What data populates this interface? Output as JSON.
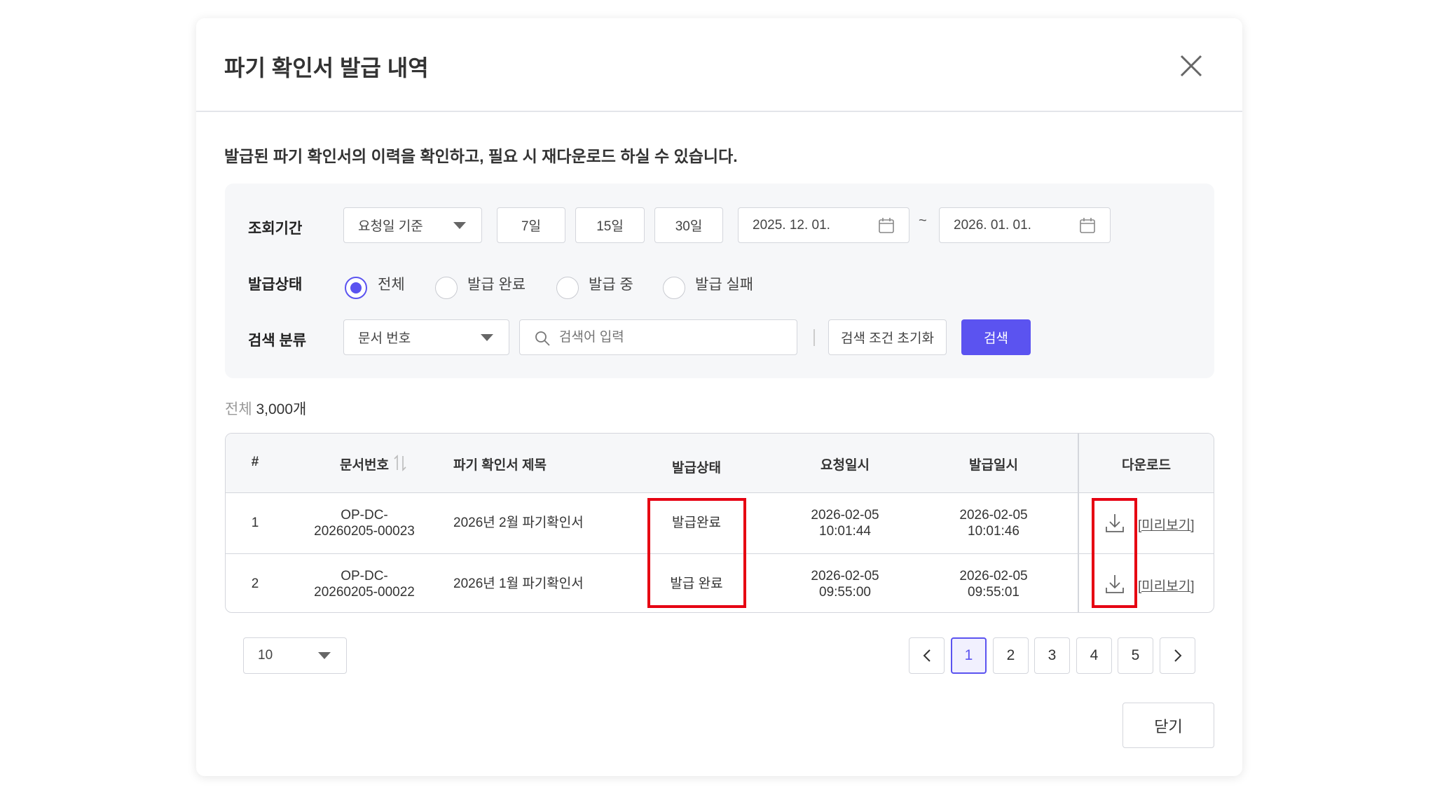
{
  "dialog": {
    "title": "파기 확인서 발급 내역",
    "description": "발급된 파기 확인서의 이력을 확인하고, 필요 시 재다운로드 하실 수 있습니다.",
    "close_icon": "close-icon"
  },
  "filters": {
    "period_label": "조회기간",
    "period_basis": "요청일 기준",
    "quick_ranges": [
      "7일",
      "15일",
      "30일"
    ],
    "start_date": "2025. 12. 01.",
    "tilde": "~",
    "end_date": "2026. 01. 01.",
    "status_label": "발급상태",
    "status_options": [
      {
        "label": "전체",
        "selected": true
      },
      {
        "label": "발급 완료",
        "selected": false
      },
      {
        "label": "발급 중",
        "selected": false
      },
      {
        "label": "발급 실패",
        "selected": false
      }
    ],
    "search_label": "검색 분류",
    "search_category": "문서 번호",
    "search_placeholder": "검색어 입력",
    "search_value": "",
    "reset_label": "검색 조건 초기화",
    "search_button": "검색"
  },
  "summary": {
    "total_label": "전체",
    "total_count": "3,000개"
  },
  "table": {
    "headers": [
      "#",
      "문서번호",
      "파기 확인서 제목",
      "발급상태",
      "요청일시",
      "발급일시",
      "다운로드"
    ],
    "rows": [
      {
        "no": "1",
        "doc_line1": "OP-DC-",
        "doc_line2": "20260205-00023",
        "title": "2026년 2월 파기확인서",
        "status": "발급완료",
        "req_date": "2026-02-05",
        "req_time": "10:01:44",
        "iss_date": "2026-02-05",
        "iss_time": "10:01:46",
        "preview": "[미리보기]"
      },
      {
        "no": "2",
        "doc_line1": "OP-DC-",
        "doc_line2": "20260205-00022",
        "title": "2026년 1월 파기확인서",
        "status": "발급 완료",
        "req_date": "2026-02-05",
        "req_time": "09:55:00",
        "iss_date": "2026-02-05",
        "iss_time": "09:55:01",
        "preview": "[미리보기]"
      }
    ]
  },
  "pagination": {
    "page_size": "10",
    "pages": [
      "1",
      "2",
      "3",
      "4",
      "5"
    ],
    "current": "1"
  },
  "footer": {
    "close_label": "닫기"
  },
  "colors": {
    "accent": "#5b53f0",
    "highlight": "#e60012"
  }
}
